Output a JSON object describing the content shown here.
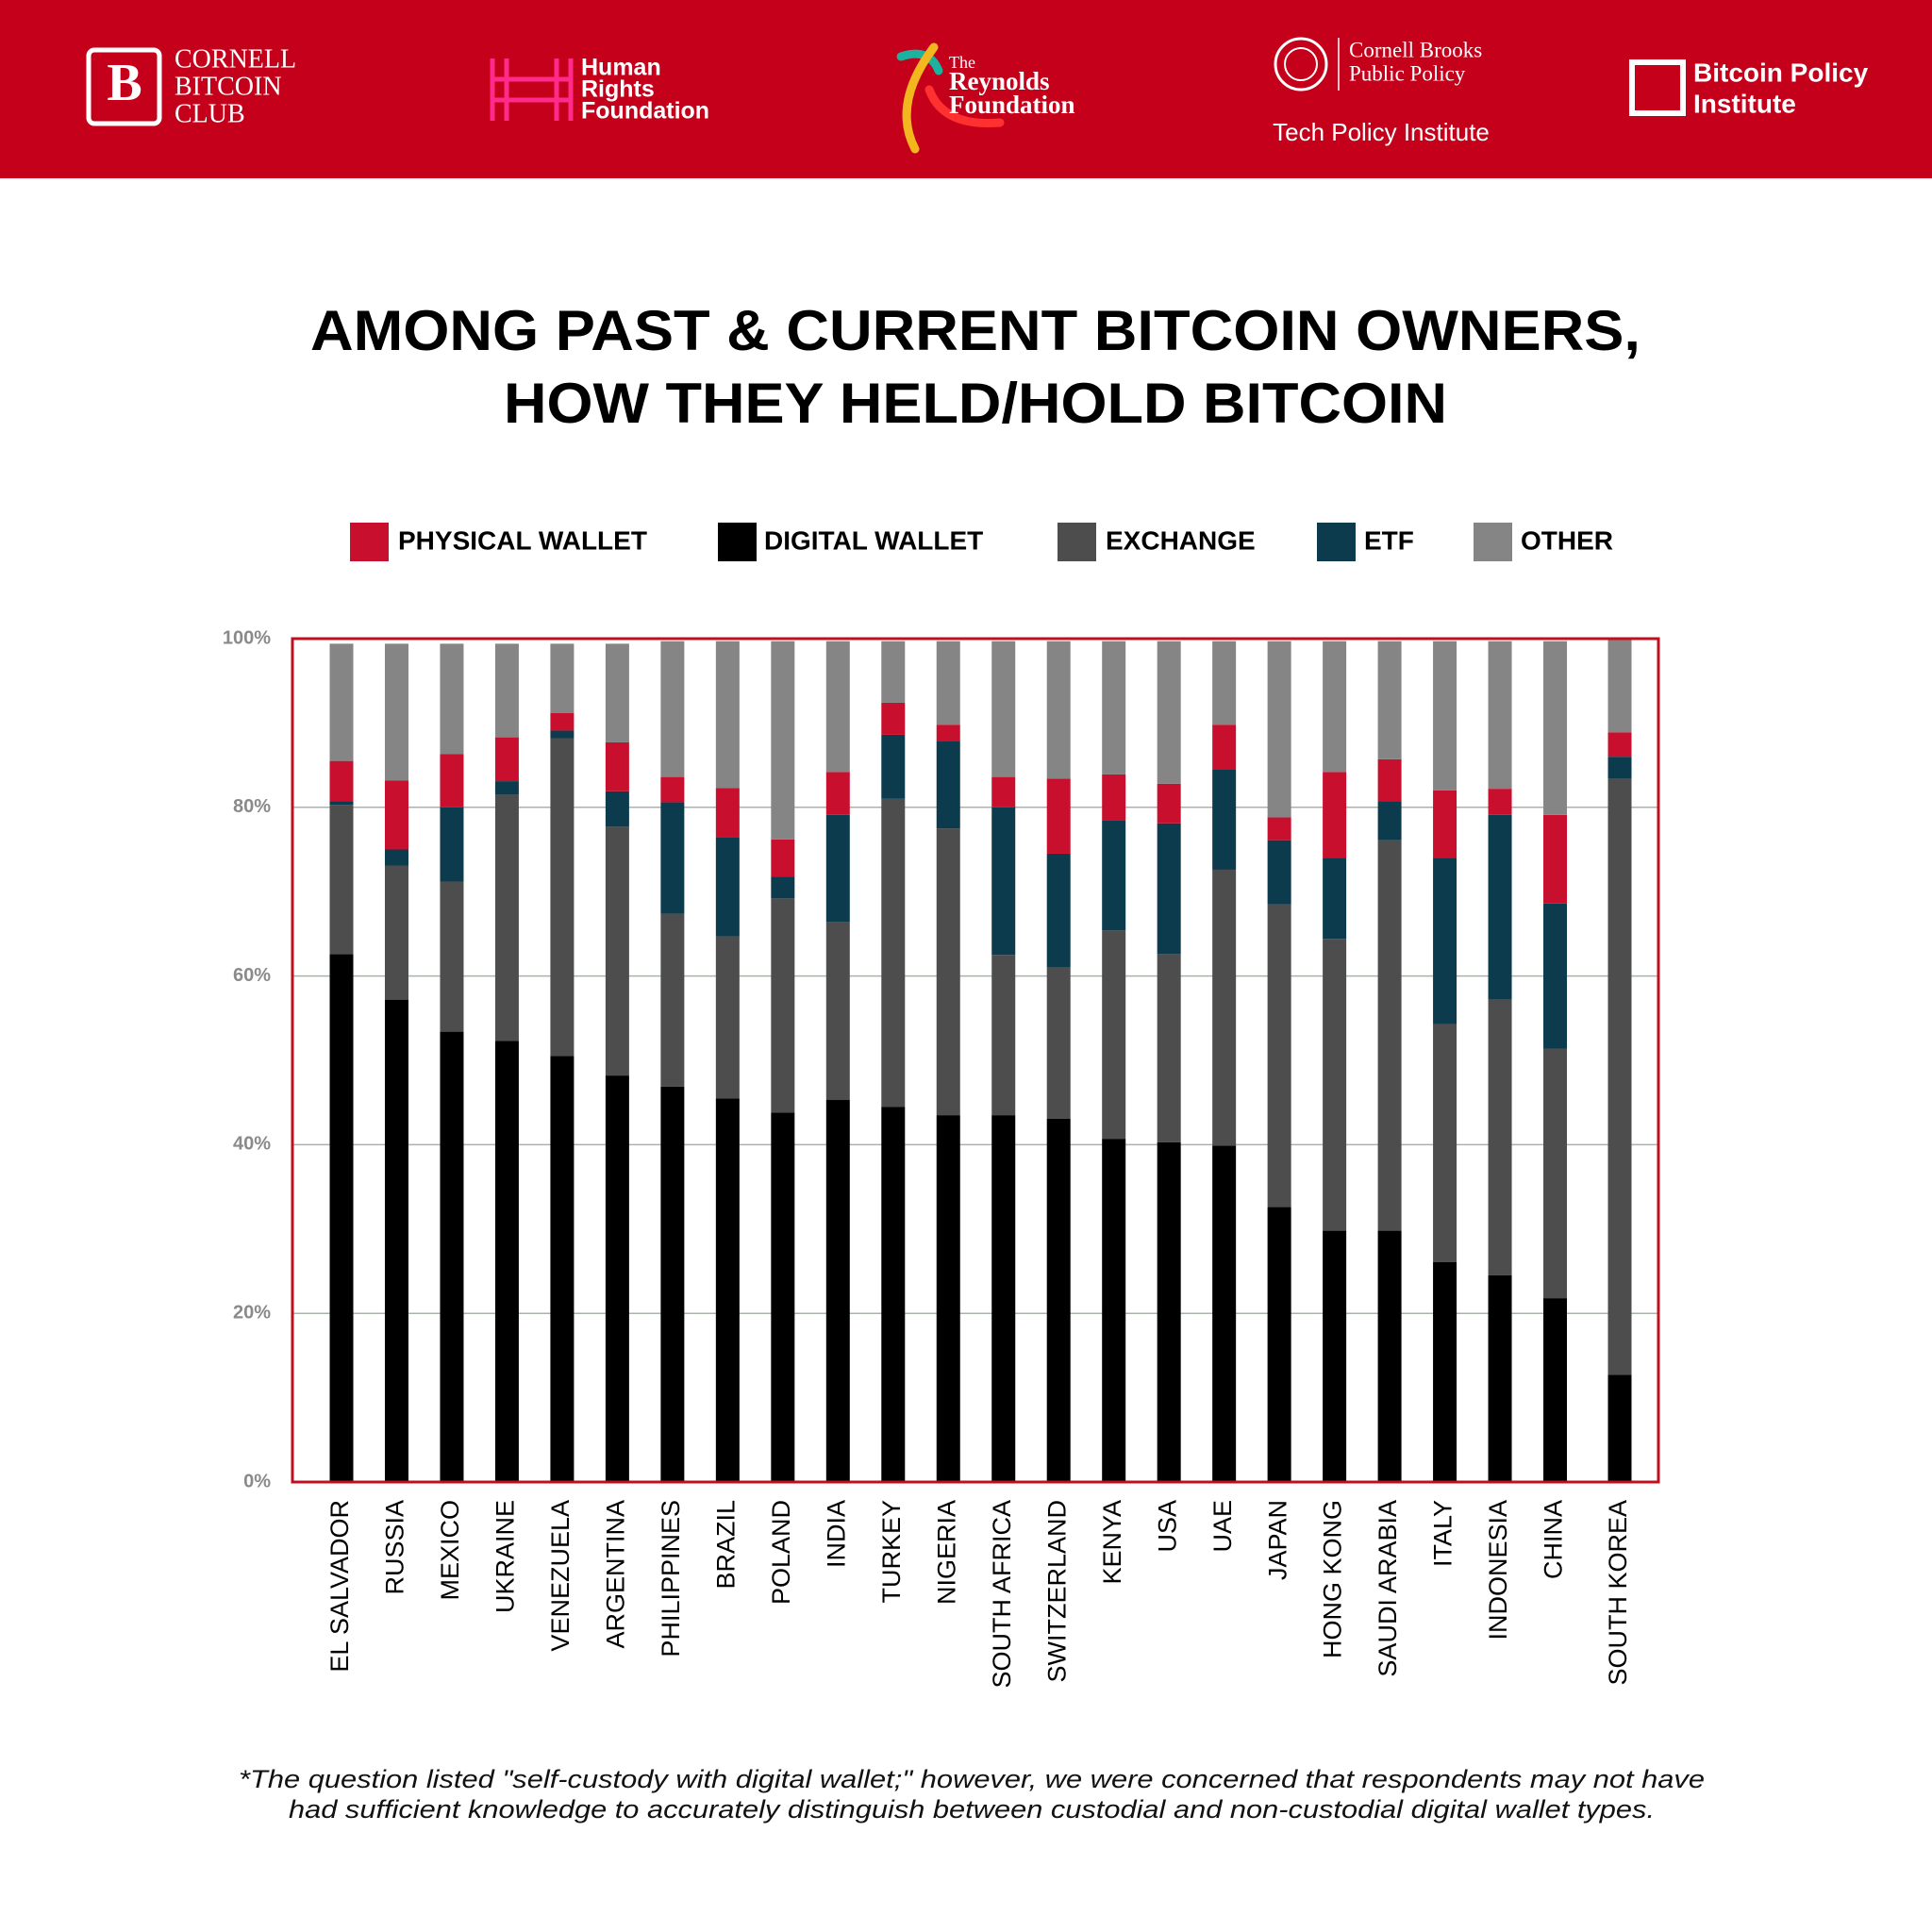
{
  "header": {
    "logos": [
      {
        "lines": [
          "CORNELL",
          "BITCOIN",
          "CLUB"
        ]
      },
      {
        "lines": [
          "Human",
          "Rights",
          "Foundation"
        ]
      },
      {
        "lines": [
          "The",
          "Reynolds",
          "Foundation"
        ]
      },
      {
        "lines": [
          "Cornell Brooks",
          "Public Policy",
          "Tech Policy Institute"
        ]
      },
      {
        "lines": [
          "Bitcoin Policy",
          "Institute"
        ]
      }
    ]
  },
  "chart_data": {
    "type": "stacked_bar",
    "title": [
      "AMONG PAST & CURRENT BITCOIN OWNERS,",
      "HOW THEY HELD/HOLD BITCOIN"
    ],
    "categories": [
      "EL SALVADOR",
      "RUSSIA",
      "MEXICO",
      "UKRAINE",
      "VENEZUELA",
      "ARGENTINA",
      "PHILIPPINES",
      "BRAZIL",
      "POLAND",
      "INDIA",
      "TURKEY",
      "NIGERIA",
      "SOUTH AFRICA",
      "SWITZERLAND",
      "KENYA",
      "USA",
      "UAE",
      "JAPAN",
      "HONG KONG",
      "SAUDI ARABIA",
      "ITALY",
      "INDONESIA",
      "CHINA",
      "SOUTH KOREA"
    ],
    "series": [
      {
        "name": "PHYSICAL WALLET",
        "color": "#c8102e",
        "values": [
          4.8,
          8.2,
          6.3,
          5.2,
          2.1,
          5.8,
          3.0,
          5.9,
          4.4,
          5.1,
          3.8,
          1.9,
          3.6,
          8.9,
          5.4,
          4.7,
          5.3,
          2.7,
          10.2,
          5.0,
          8.0,
          3.1,
          10.5,
          2.9
        ]
      },
      {
        "name": "DIGITAL WALLET",
        "color": "#000000",
        "values": [
          62.6,
          57.2,
          53.4,
          52.3,
          50.5,
          48.2,
          46.9,
          45.5,
          43.8,
          45.3,
          44.5,
          43.5,
          43.5,
          43.1,
          40.7,
          40.3,
          39.9,
          32.6,
          29.8,
          29.8,
          26.1,
          24.5,
          21.8,
          12.7
        ]
      },
      {
        "name": "EXCHANGE",
        "color": "#4d4d4d",
        "values": [
          17.7,
          15.9,
          17.8,
          29.2,
          37.7,
          29.5,
          20.5,
          19.2,
          25.4,
          21.1,
          36.5,
          34.0,
          19.0,
          17.9,
          24.7,
          22.3,
          32.7,
          35.9,
          34.6,
          46.3,
          28.2,
          32.7,
          29.6,
          70.7
        ]
      },
      {
        "name": "ETF",
        "color": "#0c3b4e",
        "values": [
          0.4,
          1.9,
          8.8,
          1.6,
          0.9,
          4.2,
          13.2,
          11.7,
          2.6,
          12.7,
          7.6,
          10.4,
          17.5,
          13.5,
          13.1,
          15.5,
          11.9,
          7.6,
          9.6,
          4.6,
          19.7,
          21.9,
          17.2,
          2.6
        ]
      },
      {
        "name": "OTHER",
        "color": "#858585",
        "values": [
          13.9,
          16.2,
          13.1,
          11.1,
          8.2,
          11.7,
          16.1,
          17.4,
          23.5,
          15.5,
          7.3,
          9.9,
          16.1,
          16.3,
          15.8,
          16.9,
          9.9,
          20.9,
          15.5,
          14.0,
          17.7,
          17.5,
          20.6,
          11.1
        ]
      }
    ],
    "ylim": [
      0,
      100
    ],
    "yticks": [
      {
        "value": 0,
        "label": "0%"
      },
      {
        "value": 20,
        "label": "20%"
      },
      {
        "value": 40,
        "label": "40%"
      },
      {
        "value": 60,
        "label": "60%"
      },
      {
        "value": 80,
        "label": "80%"
      },
      {
        "value": 100,
        "label": "100%"
      }
    ],
    "grid": true,
    "legend": "top",
    "note": [
      "*The question listed \"self-custody with digital wallet;\" however, we were concerned that respondents may not have",
      "had sufficient knowledge to accurately distinguish between custodial and non-custodial digital wallet types."
    ]
  }
}
